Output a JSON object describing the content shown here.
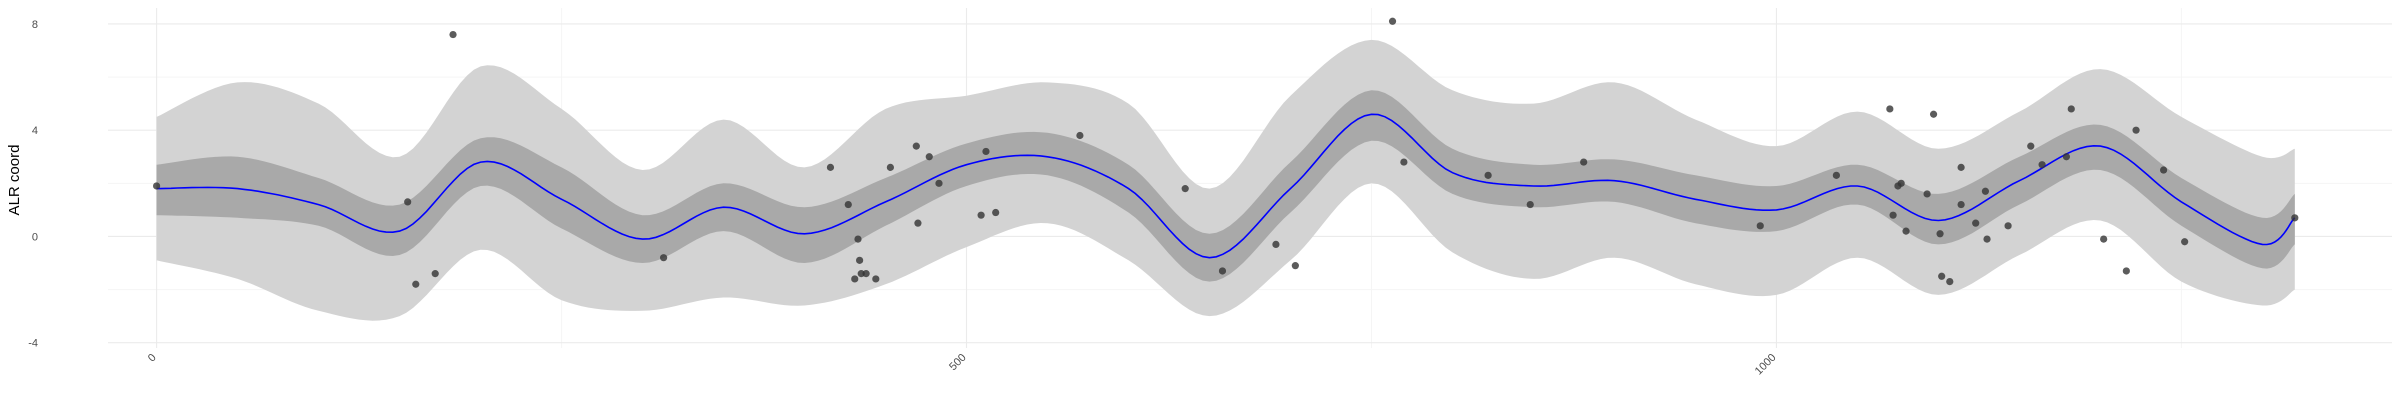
{
  "chart_data": {
    "type": "line",
    "title": "",
    "xlabel": "",
    "ylabel": "ALR coord",
    "xlim": [
      -30,
      1380
    ],
    "ylim": [
      -4.2,
      8.6
    ],
    "x_ticks": [
      0,
      500,
      1000
    ],
    "x_tick_labels": [
      "0",
      "500",
      "1000"
    ],
    "y_ticks": [
      -4,
      0,
      4,
      8
    ],
    "y_tick_labels": [
      "-4",
      "0",
      "4",
      "8"
    ],
    "grid": true,
    "legend": "none",
    "colors": {
      "outer_band": "#d3d3d3",
      "inner_band": "#a9a9a9",
      "line": "#0000ff",
      "points": "#333333",
      "grid_major": "#ebebeb",
      "grid_minor": "#f5f5f5"
    },
    "series": [
      {
        "role": "mean",
        "x": [
          0,
          50,
          100,
          150,
          200,
          250,
          300,
          350,
          400,
          450,
          500,
          550,
          600,
          650,
          700,
          750,
          800,
          850,
          900,
          950,
          1000,
          1050,
          1100,
          1150,
          1200,
          1250,
          1300,
          1320
        ],
        "y": [
          1.8,
          1.8,
          1.2,
          0.2,
          2.8,
          1.4,
          -0.1,
          1.1,
          0.1,
          1.3,
          2.7,
          3.0,
          1.8,
          -0.8,
          1.8,
          4.6,
          2.4,
          1.9,
          2.1,
          1.4,
          1.0,
          1.9,
          0.6,
          2.1,
          3.4,
          1.3,
          -0.3,
          0.7
        ]
      },
      {
        "role": "inner_band",
        "x": [
          0,
          50,
          100,
          150,
          200,
          250,
          300,
          350,
          400,
          450,
          500,
          550,
          600,
          650,
          700,
          750,
          800,
          850,
          900,
          950,
          1000,
          1050,
          1100,
          1150,
          1200,
          1250,
          1300,
          1320
        ],
        "lower": [
          0.8,
          0.7,
          0.4,
          -0.7,
          1.9,
          0.3,
          -1.0,
          0.2,
          -1.0,
          0.4,
          1.9,
          2.3,
          0.9,
          -1.7,
          0.9,
          3.6,
          1.6,
          1.1,
          1.3,
          0.5,
          0.2,
          1.2,
          -0.3,
          1.2,
          2.5,
          0.4,
          -1.2,
          -0.3
        ],
        "upper": [
          2.7,
          3.0,
          2.2,
          1.2,
          3.7,
          2.6,
          0.8,
          2.0,
          1.1,
          2.2,
          3.5,
          3.9,
          2.7,
          0.1,
          2.8,
          5.5,
          3.3,
          2.7,
          2.9,
          2.3,
          1.9,
          2.7,
          1.6,
          3.0,
          4.2,
          2.2,
          0.7,
          1.6
        ]
      },
      {
        "role": "outer_band",
        "x": [
          0,
          50,
          100,
          150,
          200,
          250,
          300,
          350,
          400,
          450,
          500,
          550,
          600,
          650,
          700,
          750,
          800,
          850,
          900,
          950,
          1000,
          1050,
          1100,
          1150,
          1200,
          1250,
          1300,
          1320
        ],
        "lower": [
          -0.9,
          -1.6,
          -2.8,
          -3.0,
          -0.5,
          -2.4,
          -2.8,
          -2.3,
          -2.6,
          -1.8,
          -0.4,
          0.5,
          -0.9,
          -3.0,
          -0.9,
          2.0,
          -0.6,
          -1.6,
          -0.8,
          -1.8,
          -2.2,
          -0.8,
          -2.2,
          -0.7,
          0.6,
          -1.7,
          -2.6,
          -2.0
        ],
        "upper": [
          4.5,
          5.8,
          5.0,
          3.0,
          6.4,
          4.8,
          2.5,
          4.4,
          2.6,
          4.8,
          5.3,
          5.8,
          5.0,
          1.8,
          5.3,
          7.4,
          5.5,
          5.0,
          5.8,
          4.4,
          3.4,
          4.7,
          3.3,
          4.7,
          6.3,
          4.5,
          3.0,
          3.3
        ]
      },
      {
        "role": "observed_points",
        "x": [
          0,
          155,
          160,
          172,
          183,
          313,
          416,
          427,
          431,
          433,
          434,
          435,
          438,
          444,
          453,
          469,
          470,
          477,
          483,
          509,
          512,
          518,
          570,
          635,
          658,
          691,
          703,
          763,
          770,
          822,
          848,
          881,
          990,
          1037,
          1070,
          1072,
          1075,
          1077,
          1080,
          1093,
          1097,
          1101,
          1102,
          1107,
          1114,
          1114,
          1123,
          1129,
          1130,
          1143,
          1157,
          1164,
          1179,
          1182,
          1202,
          1216,
          1222,
          1239,
          1252,
          1320
        ],
        "y": [
          1.9,
          1.3,
          -1.8,
          -1.4,
          7.6,
          -0.8,
          2.6,
          1.2,
          -1.6,
          -0.1,
          -0.9,
          -1.4,
          -1.4,
          -1.6,
          2.6,
          3.4,
          0.5,
          3.0,
          2.0,
          0.8,
          3.2,
          0.9,
          3.8,
          1.8,
          -1.3,
          -0.3,
          -1.1,
          8.1,
          2.8,
          2.3,
          1.2,
          2.8,
          0.4,
          2.3,
          4.8,
          0.8,
          1.9,
          2.0,
          0.2,
          1.6,
          4.6,
          0.1,
          -1.5,
          -1.7,
          2.6,
          1.2,
          0.5,
          1.7,
          -0.1,
          0.4,
          3.4,
          2.7,
          3.0,
          4.8,
          -0.1,
          -1.3,
          4.0,
          2.5,
          -0.2,
          0.7
        ]
      }
    ]
  }
}
